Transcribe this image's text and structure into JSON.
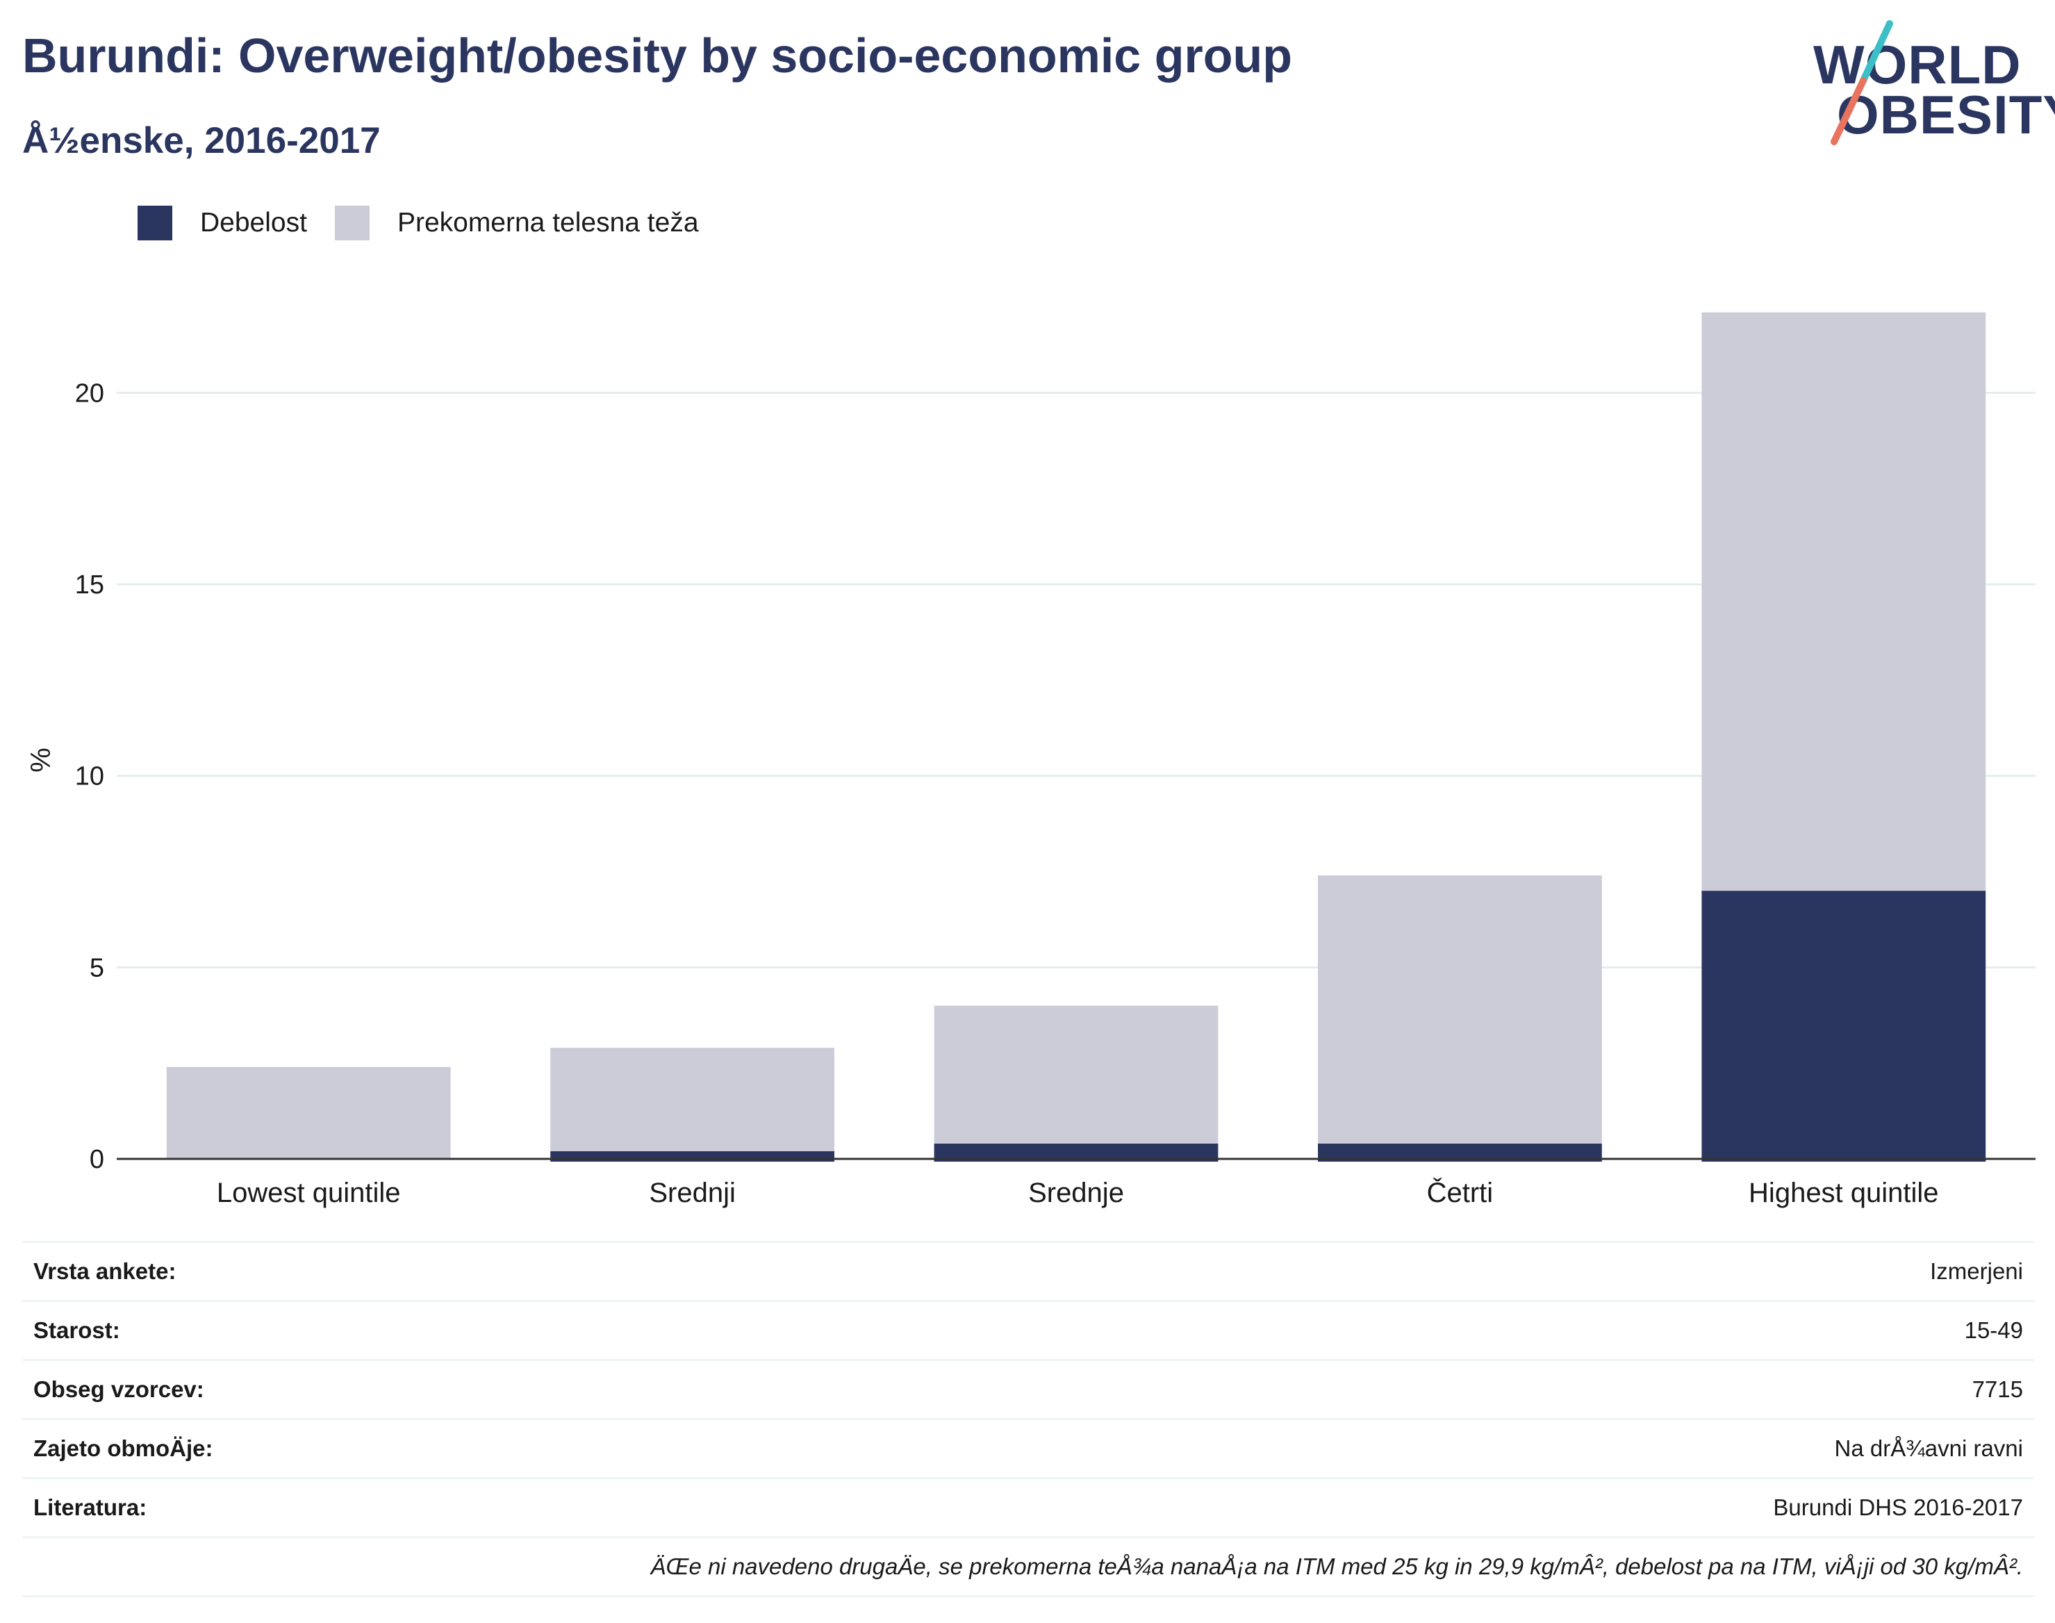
{
  "header": {
    "title": "Burundi: Overweight/obesity by socio-economic group",
    "subtitle": "Å½enske, 2016-2017"
  },
  "logo": {
    "line1": "WORLD",
    "line2": "OBESITY",
    "slash_color_top": "#3dbfc8",
    "slash_color_bottom": "#e8735f"
  },
  "legend": [
    {
      "label": "Debelost",
      "color": "#2b3660"
    },
    {
      "label": "Prekomerna telesna teža",
      "color": "#cbccd7"
    }
  ],
  "chart_data": {
    "type": "bar",
    "stacked": true,
    "categories": [
      "Lowest quintile",
      "Srednji",
      "Srednje",
      "Četrti",
      "Highest quintile"
    ],
    "series": [
      {
        "name": "Debelost",
        "color": "#2b3660",
        "values": [
          0.0,
          0.2,
          0.4,
          0.4,
          7.0
        ]
      },
      {
        "name": "Prekomerna telesna teža",
        "color": "#cbccd7",
        "values": [
          2.4,
          2.7,
          3.6,
          7.0,
          15.1
        ]
      }
    ],
    "ylabel": "%",
    "xlabel": "",
    "ylim": [
      0,
      23
    ],
    "yticks": [
      0,
      5,
      10,
      15,
      20
    ],
    "grid": true
  },
  "meta": {
    "rows": [
      {
        "label": "Vrsta ankete:",
        "value": "Izmerjeni"
      },
      {
        "label": "Starost:",
        "value": "15-49"
      },
      {
        "label": "Obseg vzorcev:",
        "value": "7715"
      },
      {
        "label": "Zajeto obmoÄje:",
        "value": "Na drÅ¾avni ravni"
      },
      {
        "label": "Literatura:",
        "value": "Burundi DHS 2016-2017"
      }
    ],
    "note": "ÄŒe ni navedeno drugaÄe, se prekomerna teÅ¾a nanaÅ¡a na ITM med 25 kg in 29,9 kg/mÂ², debelost pa na ITM, viÅ¡ji od 30 kg/mÂ²."
  }
}
